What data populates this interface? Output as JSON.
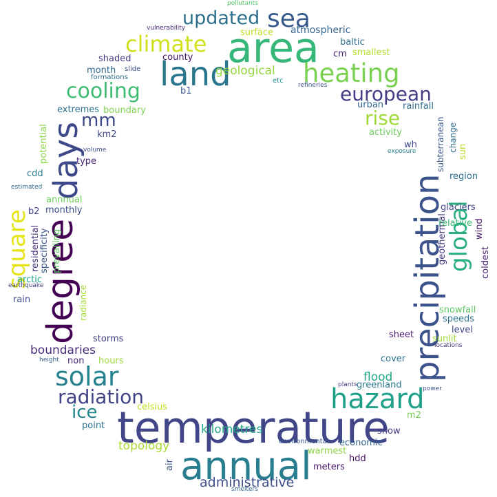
{
  "words": [
    {
      "text": "temperature",
      "color": "#404688"
    },
    {
      "text": "annual",
      "color": "#287d8e"
    },
    {
      "text": "area",
      "color": "#35b779"
    },
    {
      "text": "precipitation",
      "color": "#3b528b"
    },
    {
      "text": "degree",
      "color": "#440154"
    },
    {
      "text": "days",
      "color": "#3e4989"
    },
    {
      "text": "land",
      "color": "#2a768e"
    },
    {
      "text": "heating",
      "color": "#7ad151"
    },
    {
      "text": "hazard",
      "color": "#1fa088"
    },
    {
      "text": "solar",
      "color": "#26828e"
    },
    {
      "text": "square",
      "color": "#e4e419"
    },
    {
      "text": "global",
      "color": "#29af7f"
    },
    {
      "text": "sea",
      "color": "#38598c"
    },
    {
      "text": "climate",
      "color": "#d0e11c"
    },
    {
      "text": "updated",
      "color": "#2d708e"
    },
    {
      "text": "cooling",
      "color": "#3fbc73"
    },
    {
      "text": "radiation",
      "color": "#414487"
    },
    {
      "text": "european",
      "color": "#433e85"
    },
    {
      "text": "rise",
      "color": "#a0da39"
    },
    {
      "text": "mm",
      "color": "#3e4a89"
    },
    {
      "text": "ice",
      "color": "#25858e"
    },
    {
      "text": "administrative",
      "color": "#3e4c8a"
    },
    {
      "text": "boundaries",
      "color": "#472d7b"
    },
    {
      "text": "kilometres",
      "color": "#22a785"
    },
    {
      "text": "topology",
      "color": "#a8db34"
    },
    {
      "text": "geological",
      "color": "#95d840"
    },
    {
      "text": "flood",
      "color": "#20a486"
    },
    {
      "text": "atmospheric",
      "color": "#33638d"
    },
    {
      "text": "surface",
      "color": "#bddf26"
    },
    {
      "text": "baltic",
      "color": "#2e6e8e"
    },
    {
      "text": "smallest",
      "color": "#b5de2b"
    },
    {
      "text": "cm",
      "color": "#482173"
    },
    {
      "text": "shaded",
      "color": "#443983"
    },
    {
      "text": "month",
      "color": "#31668e"
    },
    {
      "text": "slide",
      "color": "#3c4f8a"
    },
    {
      "text": "formations",
      "color": "#2f6c8e"
    },
    {
      "text": "county",
      "color": "#471365"
    },
    {
      "text": "b1",
      "color": "#3b528b"
    },
    {
      "text": "etc",
      "color": "#23898e"
    },
    {
      "text": "refineries",
      "color": "#3a538b"
    },
    {
      "text": "vulnerability",
      "color": "#482878"
    },
    {
      "text": "pollutants",
      "color": "#52c569"
    },
    {
      "text": "extremes",
      "color": "#2e6f8e"
    },
    {
      "text": "boundary",
      "color": "#7fd34e"
    },
    {
      "text": "km2",
      "color": "#3f4889"
    },
    {
      "text": "potential",
      "color": "#8bd646"
    },
    {
      "text": "volume",
      "color": "#3d4e8a"
    },
    {
      "text": "type",
      "color": "#482475"
    },
    {
      "text": "cdd",
      "color": "#287c8e"
    },
    {
      "text": "estimated",
      "color": "#31688e"
    },
    {
      "text": "annnual",
      "color": "#6ccd5a"
    },
    {
      "text": "b2",
      "color": "#424186"
    },
    {
      "text": "monthly",
      "color": "#3d4d8a"
    },
    {
      "text": "residential",
      "color": "#46327e"
    },
    {
      "text": "specificity",
      "color": "#39568c"
    },
    {
      "text": "prevailing",
      "color": "#5ec962"
    },
    {
      "text": "radiance",
      "color": "#a5db36"
    },
    {
      "text": "arctic",
      "color": "#1f9e89"
    },
    {
      "text": "earthquake",
      "color": "#3f4788"
    },
    {
      "text": "rain",
      "color": "#3e4989"
    },
    {
      "text": "storms",
      "color": "#423f85"
    },
    {
      "text": "non",
      "color": "#472c7a"
    },
    {
      "text": "hours",
      "color": "#9dd93b"
    },
    {
      "text": "height",
      "color": "#355f8d"
    },
    {
      "text": "celsius",
      "color": "#c0df25"
    },
    {
      "text": "point",
      "color": "#2c738e"
    },
    {
      "text": "air",
      "color": "#39558c"
    },
    {
      "text": "meters",
      "color": "#48186a"
    },
    {
      "text": "hdd",
      "color": "#471063"
    },
    {
      "text": "warmest",
      "color": "#8ed645"
    },
    {
      "text": "economic",
      "color": "#32648e"
    },
    {
      "text": "environmental",
      "color": "#3b518b"
    },
    {
      "text": "smelters",
      "color": "#33628d"
    },
    {
      "text": "m2",
      "color": "#7ad151"
    },
    {
      "text": "snow",
      "color": "#453781"
    },
    {
      "text": "greenland",
      "color": "#2a788e"
    },
    {
      "text": "plants",
      "color": "#433d84"
    },
    {
      "text": "power",
      "color": "#3c508b"
    },
    {
      "text": "cover",
      "color": "#2d718e"
    },
    {
      "text": "sheet",
      "color": "#481d6f"
    },
    {
      "text": "sunlit",
      "color": "#a2da37"
    },
    {
      "text": "locations",
      "color": "#46337f"
    },
    {
      "text": "level",
      "color": "#3f4889"
    },
    {
      "text": "speeds",
      "color": "#2c738e"
    },
    {
      "text": "snowfall",
      "color": "#5ec962"
    },
    {
      "text": "coldest",
      "color": "#482475"
    },
    {
      "text": "geothermal",
      "color": "#443a83"
    },
    {
      "text": "wind",
      "color": "#481a6c"
    },
    {
      "text": "relative",
      "color": "#3bbb75"
    },
    {
      "text": "glaciers",
      "color": "#3f4788"
    },
    {
      "text": "region",
      "color": "#2d718e"
    },
    {
      "text": "subterranean",
      "color": "#38598c"
    },
    {
      "text": "change",
      "color": "#2e6e8e"
    },
    {
      "text": "sun",
      "color": "#bade28"
    },
    {
      "text": "exposure",
      "color": "#26828e"
    },
    {
      "text": "wh",
      "color": "#3e4989"
    },
    {
      "text": "activity",
      "color": "#6ccd5a"
    },
    {
      "text": "urban",
      "color": "#33638d"
    },
    {
      "text": "rainfall",
      "color": "#2f6b8e"
    }
  ]
}
